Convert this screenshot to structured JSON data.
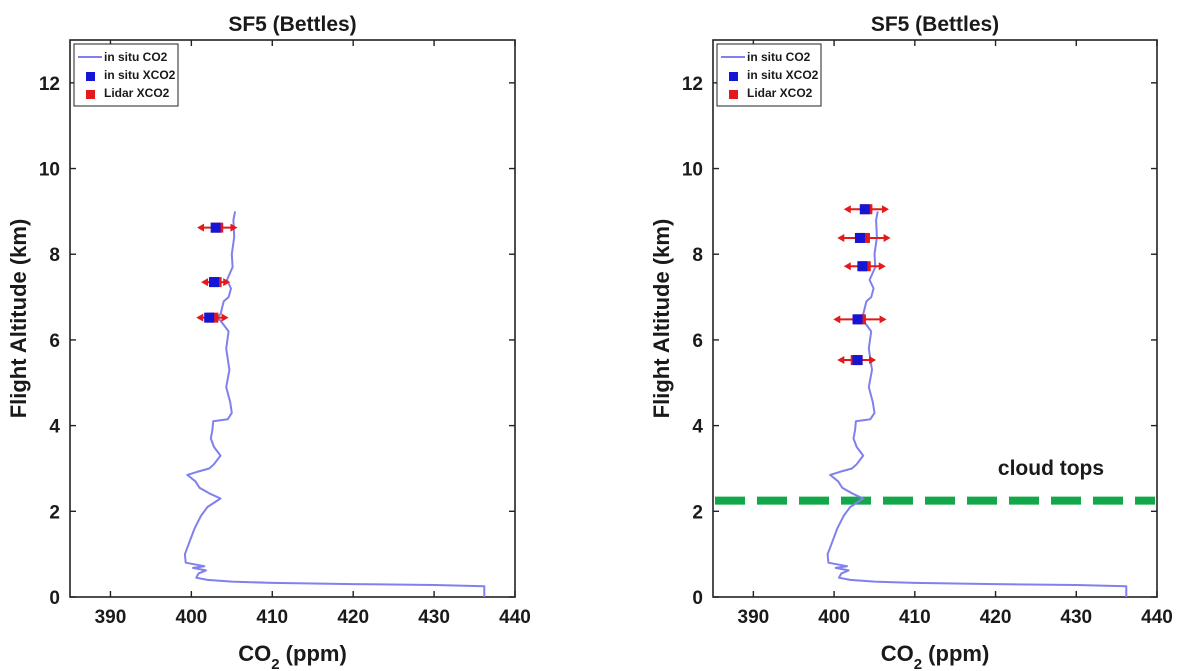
{
  "chart_data": [
    {
      "type": "line",
      "title": "SF5 (Bettles)",
      "xlabel": "CO",
      "xlabel_sub": "2",
      "xlabel_unit": " (ppm)",
      "ylabel": "Flight Altitude (km)",
      "xlim": [
        385,
        440
      ],
      "ylim": [
        0,
        13
      ],
      "xticks": [
        390,
        400,
        410,
        420,
        430,
        440
      ],
      "yticks": [
        0,
        2,
        4,
        6,
        8,
        10,
        12
      ],
      "legend_position": "top-left",
      "legend": [
        "in situ CO2",
        "in situ XCO2",
        "Lidar XCO2"
      ],
      "colors": {
        "profile": "#8080ee",
        "in_situ_xco2": "#1515d6",
        "lidar_xco2": "#e41a1a",
        "cloud_tops": "#12a84a"
      },
      "series": [
        {
          "name": "in situ CO2",
          "kind": "line",
          "points": [
            [
              436.2,
              0.0
            ],
            [
              436.2,
              0.25
            ],
            [
              430,
              0.28
            ],
            [
              420,
              0.3
            ],
            [
              410,
              0.33
            ],
            [
              405,
              0.36
            ],
            [
              402,
              0.4
            ],
            [
              400.6,
              0.45
            ],
            [
              400.9,
              0.55
            ],
            [
              401.8,
              0.62
            ],
            [
              400.2,
              0.68
            ],
            [
              401.6,
              0.72
            ],
            [
              399.3,
              0.8
            ],
            [
              399.2,
              1.0
            ],
            [
              399.8,
              1.3
            ],
            [
              400.4,
              1.6
            ],
            [
              401.2,
              1.9
            ],
            [
              402.0,
              2.1
            ],
            [
              403.6,
              2.3
            ],
            [
              402.2,
              2.42
            ],
            [
              401.0,
              2.55
            ],
            [
              400.5,
              2.7
            ],
            [
              399.5,
              2.85
            ],
            [
              400.7,
              2.92
            ],
            [
              402.2,
              3.0
            ],
            [
              402.8,
              3.1
            ],
            [
              403.6,
              3.3
            ],
            [
              402.8,
              3.5
            ],
            [
              402.4,
              3.7
            ],
            [
              402.6,
              3.9
            ],
            [
              402.7,
              4.1
            ],
            [
              404.5,
              4.15
            ],
            [
              405.0,
              4.3
            ],
            [
              404.8,
              4.55
            ],
            [
              404.3,
              4.9
            ],
            [
              404.7,
              5.3
            ],
            [
              404.3,
              5.8
            ],
            [
              404.6,
              6.2
            ],
            [
              403.6,
              6.45
            ],
            [
              403.1,
              6.52
            ],
            [
              403.6,
              6.6
            ],
            [
              404.0,
              6.9
            ],
            [
              404.6,
              7.0
            ],
            [
              404.9,
              7.2
            ],
            [
              404.4,
              7.4
            ],
            [
              405.1,
              7.7
            ],
            [
              405.0,
              8.0
            ],
            [
              405.3,
              8.4
            ],
            [
              405.2,
              8.8
            ],
            [
              405.4,
              9.0
            ]
          ]
        },
        {
          "name": "in situ XCO2",
          "kind": "points",
          "x": [
            403.0,
            402.8,
            402.2
          ],
          "y": [
            8.62,
            7.35,
            6.52
          ]
        },
        {
          "name": "Lidar XCO2",
          "kind": "points",
          "x": [
            403.2,
            403.0,
            402.6
          ],
          "y": [
            8.62,
            7.35,
            6.52
          ],
          "xerr": [
            2.5,
            1.8,
            2.0
          ]
        }
      ]
    },
    {
      "type": "line",
      "title": "SF5 (Bettles)",
      "xlabel": "CO",
      "xlabel_sub": "2",
      "xlabel_unit": " (ppm)",
      "ylabel": "Flight Altitude (km)",
      "xlim": [
        385,
        440
      ],
      "ylim": [
        0,
        13
      ],
      "xticks": [
        390,
        400,
        410,
        420,
        430,
        440
      ],
      "yticks": [
        0,
        2,
        4,
        6,
        8,
        10,
        12
      ],
      "legend_position": "top-left",
      "legend": [
        "in situ CO2",
        "in situ XCO2",
        "Lidar XCO2"
      ],
      "annotation": "cloud tops",
      "cloud_tops_km": 2.25,
      "colors": {
        "profile": "#8080ee",
        "in_situ_xco2": "#1515d6",
        "lidar_xco2": "#e41a1a",
        "cloud_tops": "#12a84a"
      },
      "series": [
        {
          "name": "in situ CO2",
          "kind": "line",
          "points": [
            [
              436.2,
              0.0
            ],
            [
              436.2,
              0.25
            ],
            [
              430,
              0.28
            ],
            [
              420,
              0.3
            ],
            [
              410,
              0.33
            ],
            [
              405,
              0.36
            ],
            [
              402,
              0.4
            ],
            [
              400.6,
              0.45
            ],
            [
              400.9,
              0.55
            ],
            [
              401.8,
              0.62
            ],
            [
              400.2,
              0.68
            ],
            [
              401.6,
              0.72
            ],
            [
              399.3,
              0.8
            ],
            [
              399.2,
              1.0
            ],
            [
              399.8,
              1.3
            ],
            [
              400.4,
              1.6
            ],
            [
              401.2,
              1.9
            ],
            [
              402.0,
              2.1
            ],
            [
              403.6,
              2.3
            ],
            [
              402.2,
              2.42
            ],
            [
              401.0,
              2.55
            ],
            [
              400.5,
              2.7
            ],
            [
              399.5,
              2.85
            ],
            [
              400.7,
              2.92
            ],
            [
              402.2,
              3.0
            ],
            [
              402.8,
              3.1
            ],
            [
              403.6,
              3.3
            ],
            [
              402.8,
              3.5
            ],
            [
              402.4,
              3.7
            ],
            [
              402.6,
              3.9
            ],
            [
              402.7,
              4.1
            ],
            [
              404.5,
              4.15
            ],
            [
              405.0,
              4.3
            ],
            [
              404.8,
              4.55
            ],
            [
              404.3,
              4.9
            ],
            [
              404.7,
              5.3
            ],
            [
              404.3,
              5.8
            ],
            [
              404.6,
              6.2
            ],
            [
              403.6,
              6.45
            ],
            [
              403.1,
              6.52
            ],
            [
              403.6,
              6.6
            ],
            [
              404.0,
              6.9
            ],
            [
              404.6,
              7.0
            ],
            [
              404.9,
              7.2
            ],
            [
              404.4,
              7.4
            ],
            [
              405.1,
              7.7
            ],
            [
              405.0,
              8.0
            ],
            [
              405.3,
              8.4
            ],
            [
              405.2,
              8.8
            ],
            [
              405.4,
              9.0
            ]
          ]
        },
        {
          "name": "in situ XCO2",
          "kind": "points",
          "x": [
            403.8,
            403.2,
            403.5,
            402.9,
            402.9
          ],
          "y": [
            9.05,
            8.38,
            7.72,
            6.48,
            5.53
          ]
        },
        {
          "name": "Lidar XCO2",
          "kind": "points",
          "x": [
            404.0,
            403.7,
            403.8,
            403.2,
            402.8
          ],
          "y": [
            9.05,
            8.38,
            7.72,
            6.48,
            5.53
          ],
          "xerr": [
            2.8,
            3.3,
            2.6,
            3.3,
            2.4
          ]
        }
      ]
    }
  ]
}
